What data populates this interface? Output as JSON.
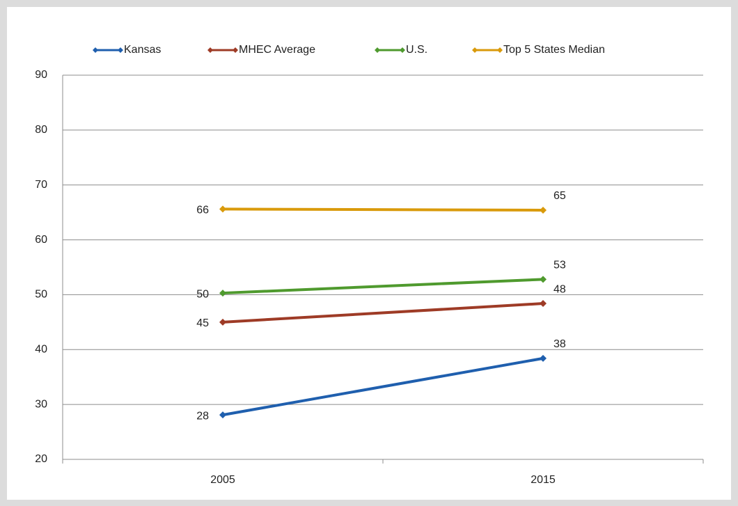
{
  "chart_data": {
    "type": "line",
    "categories": [
      "2005",
      "2015"
    ],
    "series": [
      {
        "name": "Kansas",
        "color": "#1f5fae",
        "values": [
          28.1,
          38.4
        ],
        "value_labels": [
          "28",
          "38"
        ]
      },
      {
        "name": "MHEC Average",
        "color": "#9e3b26",
        "values": [
          45.0,
          48.4
        ],
        "value_labels": [
          "45",
          "48"
        ]
      },
      {
        "name": "U.S.",
        "color": "#4f9a2e",
        "values": [
          50.3,
          52.8
        ],
        "value_labels": [
          "50",
          "53"
        ]
      },
      {
        "name": "Top 5 States Median",
        "color": "#d99a0b",
        "values": [
          65.6,
          65.4
        ],
        "value_labels": [
          "66",
          "65"
        ]
      }
    ],
    "ylim": [
      20,
      90
    ],
    "yticks": [
      20,
      30,
      40,
      50,
      60,
      70,
      80,
      90
    ],
    "grid": true,
    "legend": "top"
  }
}
